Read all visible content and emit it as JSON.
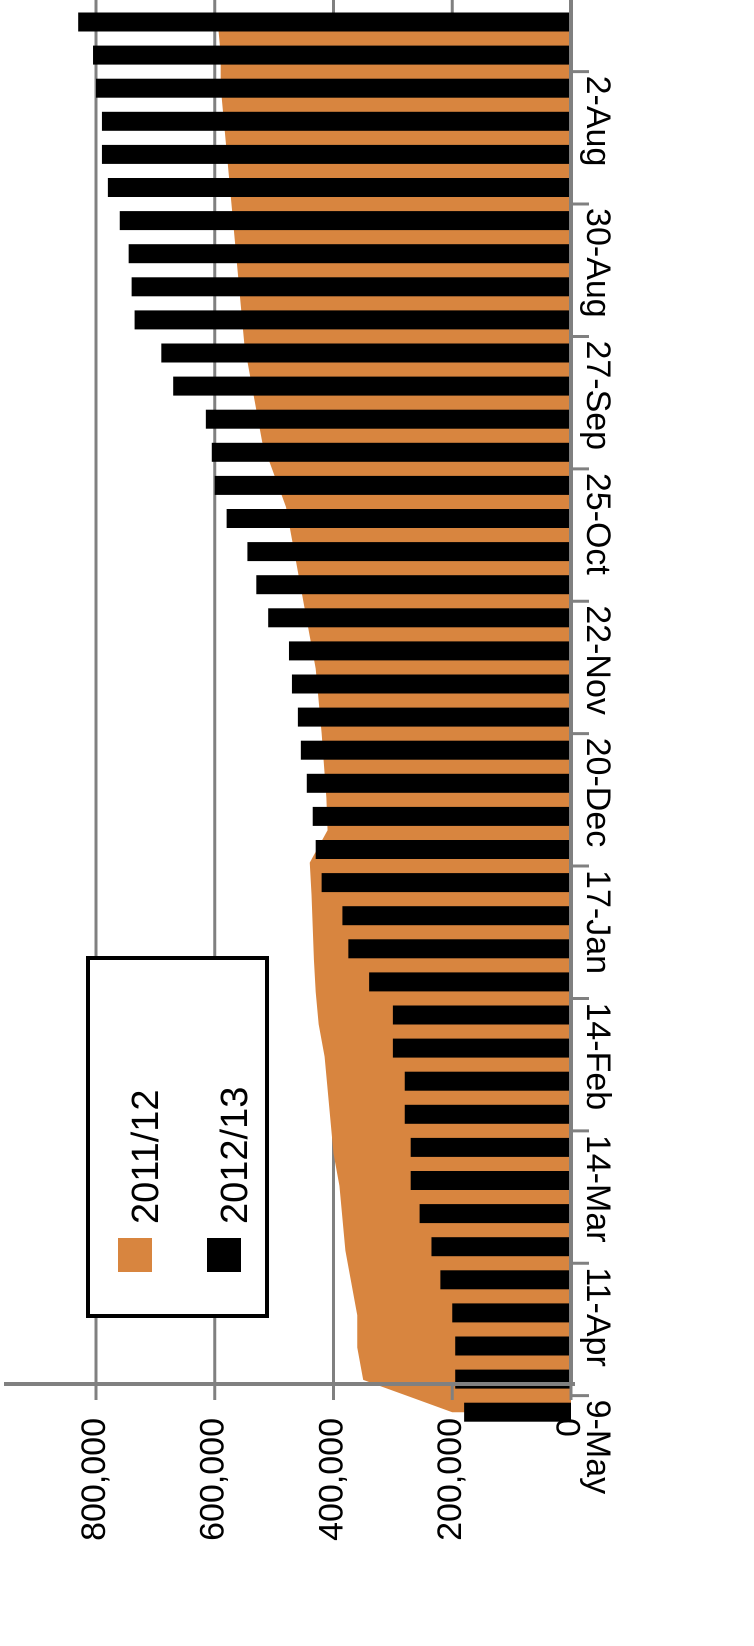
{
  "chart_data": {
    "type": "area",
    "title": "",
    "xlabel": "",
    "ylabel": "",
    "ylim": [
      0,
      800000
    ],
    "yticks": [
      {
        "value": 0,
        "label": "0"
      },
      {
        "value": 200000,
        "label": "200,000"
      },
      {
        "value": 400000,
        "label": "400,000"
      },
      {
        "value": 600000,
        "label": "600,000"
      },
      {
        "value": 800000,
        "label": "800,000"
      }
    ],
    "x_tick_labels": [
      {
        "index": 1,
        "label": "2-Aug"
      },
      {
        "index": 5,
        "label": "30-Aug"
      },
      {
        "index": 9,
        "label": "27-Sep"
      },
      {
        "index": 13,
        "label": "25-Oct"
      },
      {
        "index": 17,
        "label": "22-Nov"
      },
      {
        "index": 21,
        "label": "20-Dec"
      },
      {
        "index": 25,
        "label": "17-Jan"
      },
      {
        "index": 29,
        "label": "14-Feb"
      },
      {
        "index": 33,
        "label": "14-Mar"
      },
      {
        "index": 37,
        "label": "11-Apr"
      },
      {
        "index": 41,
        "label": "9-May"
      }
    ],
    "series": [
      {
        "name": "2011/12",
        "style": "area",
        "color": "#D8853F",
        "values": [
          200000,
          350000,
          360000,
          360000,
          370000,
          380000,
          385000,
          390000,
          400000,
          405000,
          410000,
          415000,
          425000,
          430000,
          433000,
          435000,
          437000,
          440000,
          410000,
          412000,
          416000,
          420000,
          425000,
          430000,
          440000,
          450000,
          460000,
          470000,
          480000,
          500000,
          520000,
          530000,
          540000,
          550000,
          555000,
          560000,
          565000,
          570000,
          575000,
          580000,
          585000,
          590000,
          590000,
          595000
        ]
      },
      {
        "name": "2012/13",
        "style": "bar",
        "color": "#000000",
        "values": [
          180000,
          195000,
          195000,
          200000,
          220000,
          235000,
          255000,
          270000,
          270000,
          280000,
          280000,
          300000,
          300000,
          340000,
          375000,
          385000,
          420000,
          430000,
          435000,
          445000,
          455000,
          460000,
          470000,
          475000,
          510000,
          530000,
          545000,
          580000,
          600000,
          605000,
          615000,
          670000,
          690000,
          735000,
          740000,
          745000,
          760000,
          780000,
          790000,
          790000,
          800000,
          805000,
          830000
        ]
      }
    ],
    "legend": {
      "placement": "bottom-left"
    }
  }
}
